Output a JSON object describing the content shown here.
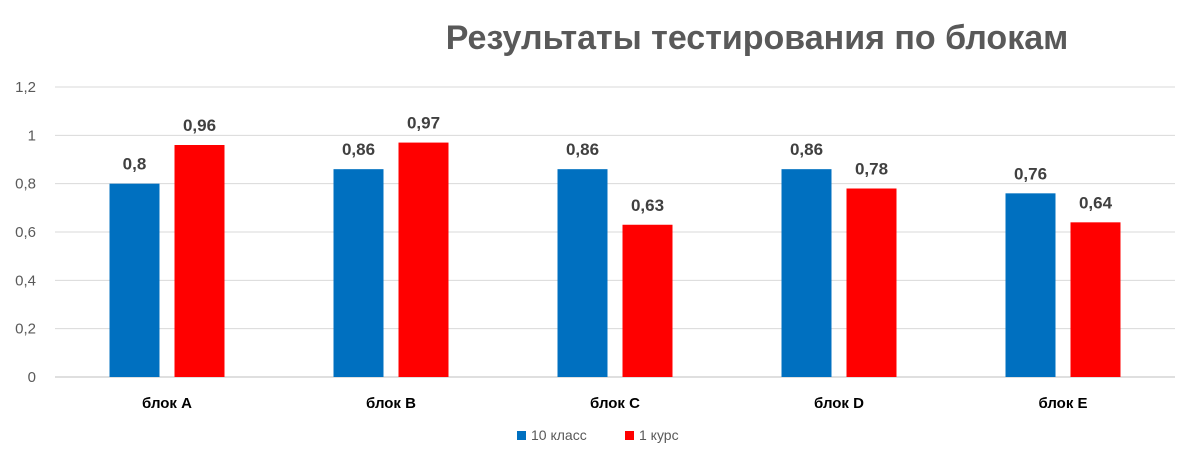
{
  "chart_data": {
    "type": "bar",
    "title": "Результаты тестирования по блокам",
    "categories": [
      "блок A",
      "блок B",
      "блок C",
      "блок D",
      "блок E"
    ],
    "series": [
      {
        "name": "10 класс",
        "color": "#0070C0",
        "values": [
          0.8,
          0.86,
          0.86,
          0.86,
          0.76
        ],
        "labels": [
          "0,8",
          "0,86",
          "0,86",
          "0,86",
          "0,76"
        ]
      },
      {
        "name": "1 курс",
        "color": "#FF0000",
        "values": [
          0.96,
          0.97,
          0.63,
          0.78,
          0.64
        ],
        "labels": [
          "0,96",
          "0,97",
          "0,63",
          "0,78",
          "0,64"
        ]
      }
    ],
    "yticks": [
      0,
      0.2,
      0.4,
      0.6,
      0.8,
      1,
      1.2
    ],
    "ytick_labels": [
      "0",
      "0,2",
      "0,4",
      "0,6",
      "0,8",
      "1",
      "1,2"
    ],
    "ylim": [
      0,
      1.2
    ],
    "grid": true,
    "legend": "bottom-center"
  }
}
